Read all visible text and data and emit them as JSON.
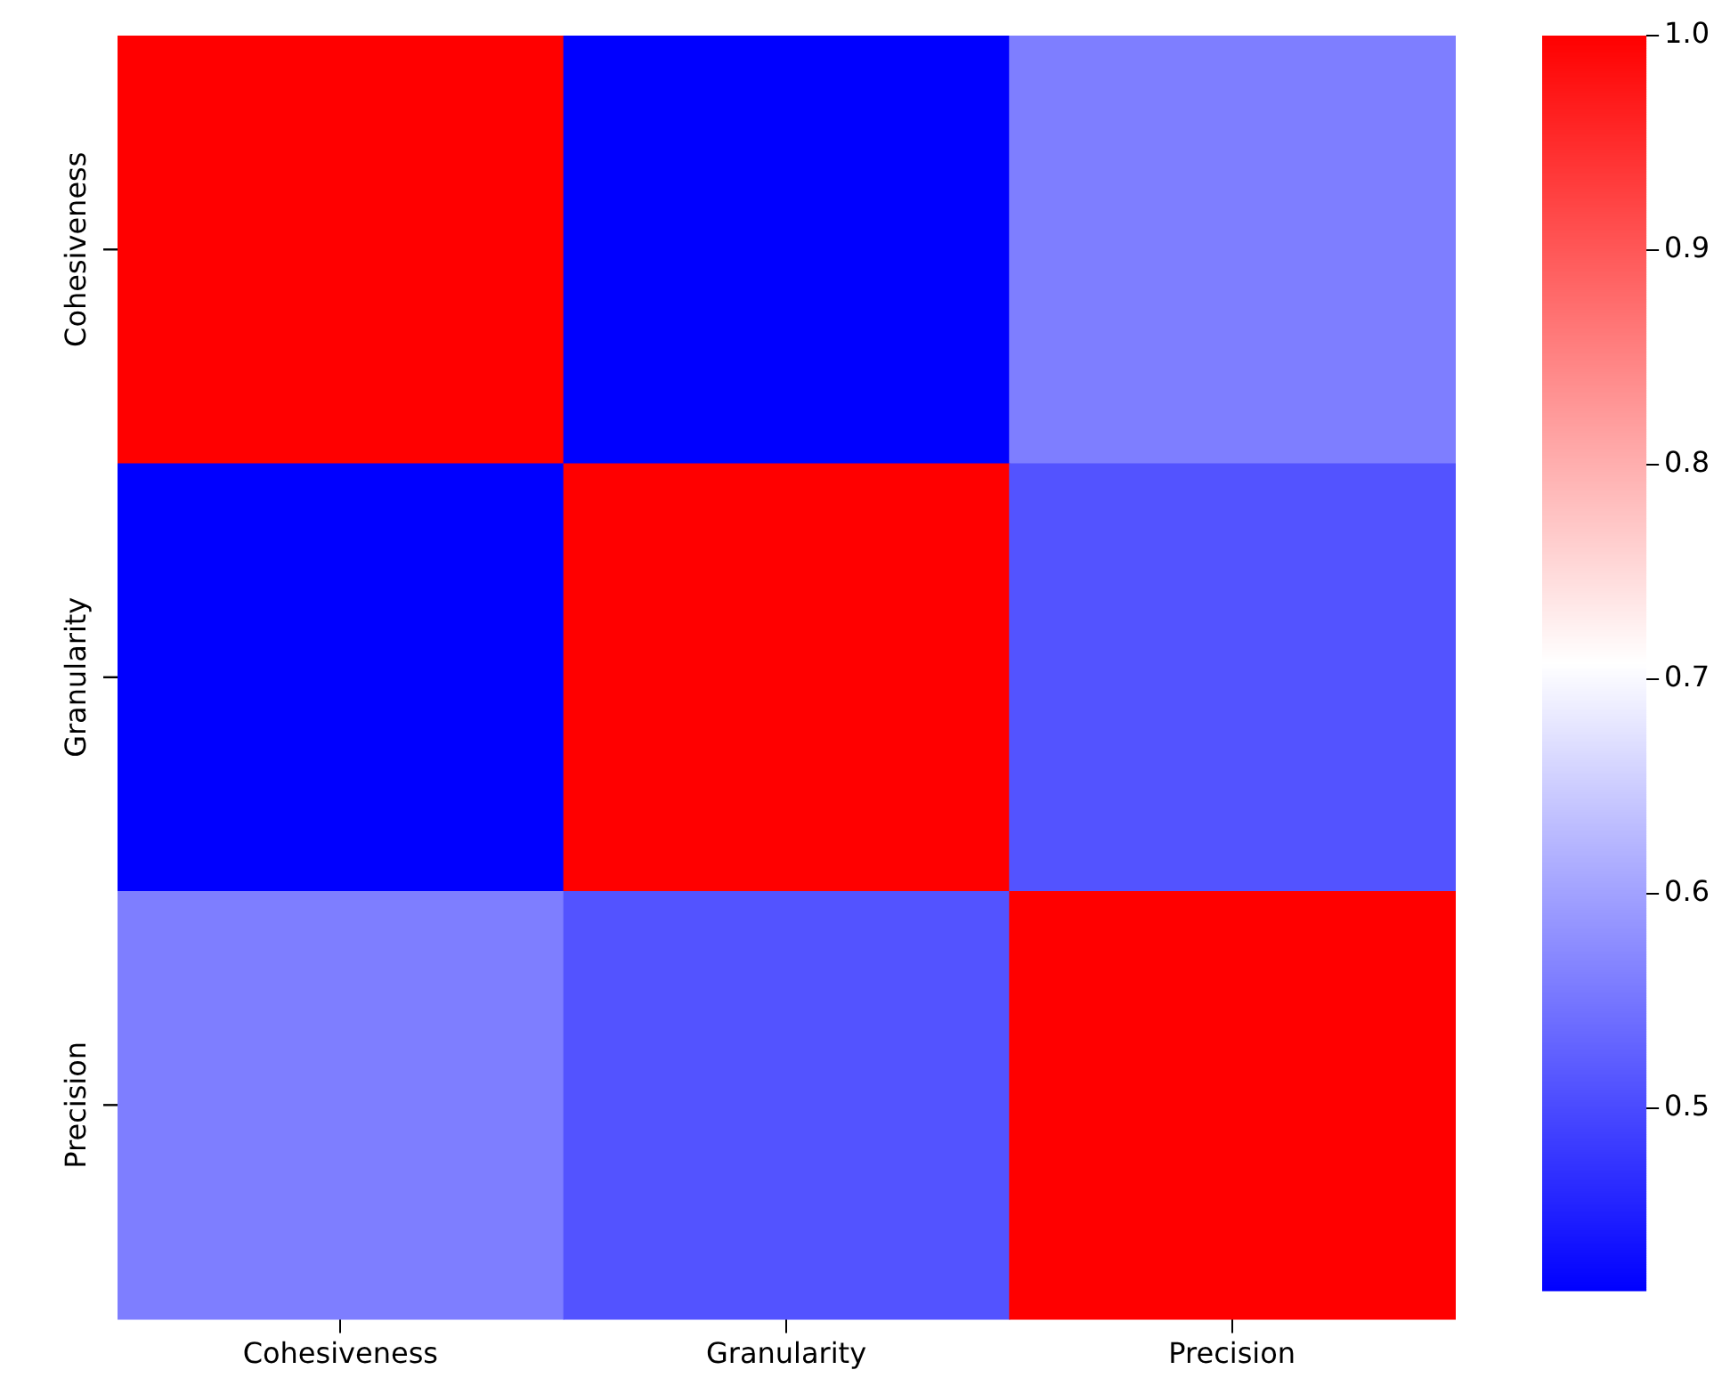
{
  "chart_data": {
    "type": "heatmap",
    "categories": [
      "Cohesiveness",
      "Granularity",
      "Precision"
    ],
    "y_categories": [
      "Cohesiveness",
      "Granularity",
      "Precision"
    ],
    "cells": [
      [
        1.0,
        0.415,
        0.56
      ],
      [
        0.415,
        1.0,
        0.51
      ],
      [
        0.56,
        0.51,
        1.0
      ]
    ],
    "clim": [
      0.415,
      1.0
    ],
    "cticks": [
      0.5,
      0.6,
      0.7,
      0.8,
      0.9,
      {
        "value": 1.0,
        "label": "1.0"
      }
    ]
  }
}
